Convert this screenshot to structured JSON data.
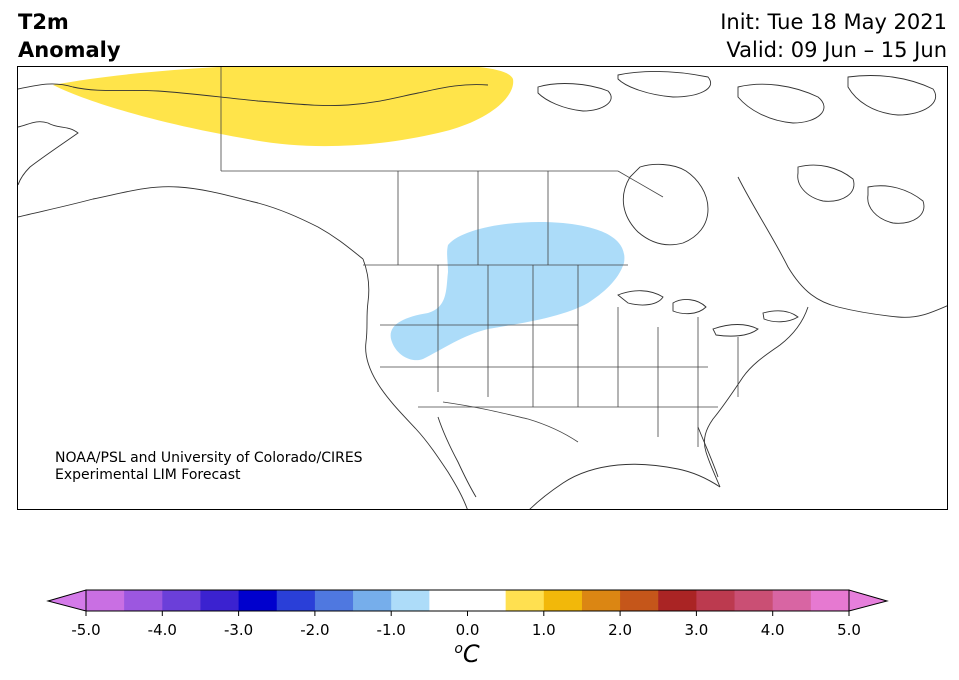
{
  "title": {
    "line1": "T2m",
    "line2": "Anomaly"
  },
  "info": {
    "init": "Init: Tue 18 May 2021",
    "valid": "Valid: 09 Jun – 15 Jun"
  },
  "credit": {
    "line1": "NOAA/PSL and University of Colorado/CIRES",
    "line2": "Experimental LIM Forecast"
  },
  "colorbar": {
    "unit": "oC",
    "unit_base": "C",
    "unit_sup": "o",
    "ticks": [
      "-5.0",
      "-4.0",
      "-3.0",
      "-2.0",
      "-1.0",
      "0.0",
      "1.0",
      "2.0",
      "3.0",
      "4.0",
      "5.0"
    ],
    "range": [
      -5.0,
      5.0
    ],
    "step": 0.5,
    "colors": [
      "#c96fe3",
      "#9c57e0",
      "#6b3fd9",
      "#3b22d0",
      "#0000cd",
      "#2a3fd8",
      "#4f78e0",
      "#76aeeb",
      "#addcf9",
      "#ffffff",
      "#ffffff",
      "#ffe050",
      "#f2b80a",
      "#db8613",
      "#c5561a",
      "#aa2424",
      "#bc3a4f",
      "#ca4f74",
      "#d865a3",
      "#e679d1"
    ],
    "under_color": "#d47ae9",
    "over_color": "#e67fdc"
  },
  "anomalies": [
    {
      "name": "warm-anomaly-north",
      "value": 0.5,
      "color": "#ffe44a"
    },
    {
      "name": "cool-anomaly-west",
      "value": -0.5,
      "color": "#acdcf9"
    }
  ]
}
